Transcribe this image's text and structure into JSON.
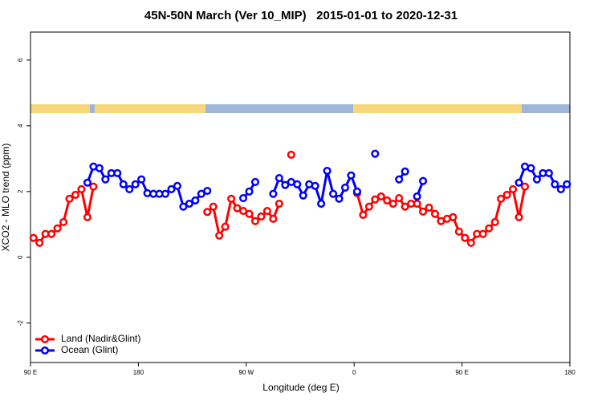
{
  "chart_data": {
    "type": "line",
    "title": "45N-50N March (Ver 10_MIP)   2015-01-01 to 2020-12-31",
    "x_label": "Longitude (deg E)",
    "y_label": "XCO2 - MLO trend (ppm)",
    "x": [
      92.5,
      97.5,
      102.5,
      107.5,
      112.5,
      117.5,
      122.5,
      127.5,
      132.5,
      137.5,
      142.5,
      147.5,
      152.5,
      157.5,
      162.5,
      167.5,
      172.5,
      177.5,
      182.5,
      187.5,
      192.5,
      197.5,
      202.5,
      207.5,
      212.5,
      217.5,
      222.5,
      227.5,
      232.5,
      237.5,
      242.5,
      247.5,
      252.5,
      257.5,
      262.5,
      267.5,
      272.5,
      277.5,
      282.5,
      287.5,
      292.5,
      297.5,
      302.5,
      307.5,
      312.5,
      317.5,
      322.5,
      327.5,
      332.5,
      337.5,
      342.5,
      347.5,
      352.5,
      357.5,
      362.5,
      367.5,
      372.5,
      377.5,
      382.5,
      387.5,
      392.5,
      397.5,
      402.5,
      407.5,
      412.5,
      417.5,
      422.5,
      427.5,
      432.5,
      437.5,
      442.5,
      447.5,
      452.5,
      457.5,
      462.5,
      467.5,
      472.5,
      477.5,
      482.5,
      487.5,
      492.5,
      497.5,
      502.5,
      507.5,
      512.5,
      517.5,
      522.5,
      527.5,
      532.5,
      537.5
    ],
    "series": [
      {
        "name": "Land (Nadir&Glint)",
        "color": "#ff0000",
        "values": [
          0.59,
          0.44,
          0.71,
          0.71,
          0.88,
          1.07,
          1.78,
          1.9,
          2.07,
          1.22,
          2.15,
          null,
          null,
          null,
          null,
          null,
          null,
          null,
          null,
          null,
          null,
          null,
          null,
          null,
          null,
          null,
          null,
          null,
          null,
          1.38,
          1.54,
          0.66,
          0.93,
          1.78,
          1.49,
          1.41,
          1.32,
          1.1,
          1.24,
          1.41,
          1.17,
          1.63,
          null,
          3.12,
          null,
          null,
          null,
          null,
          null,
          null,
          null,
          null,
          null,
          null,
          1.95,
          1.29,
          1.54,
          1.76,
          1.85,
          1.73,
          1.63,
          1.8,
          1.54,
          1.63,
          1.63,
          1.39,
          1.51,
          1.32,
          1.1,
          1.17,
          1.22,
          0.78,
          0.59,
          0.44,
          0.71,
          0.71,
          0.88,
          1.07,
          1.78,
          1.9,
          2.07,
          1.22,
          2.15,
          null,
          null,
          null,
          null,
          null,
          null,
          null
        ]
      },
      {
        "name": "Ocean (Glint)",
        "color": "#0000ff",
        "values": [
          null,
          null,
          null,
          null,
          null,
          null,
          null,
          null,
          null,
          2.27,
          2.76,
          2.71,
          2.37,
          2.56,
          2.56,
          2.22,
          2.07,
          2.22,
          2.37,
          1.95,
          1.93,
          1.93,
          1.93,
          2.07,
          2.17,
          1.54,
          1.63,
          1.73,
          1.93,
          2.02,
          null,
          null,
          null,
          null,
          null,
          1.8,
          2.0,
          2.29,
          null,
          null,
          1.93,
          2.41,
          2.2,
          2.29,
          2.22,
          1.88,
          2.22,
          2.17,
          1.63,
          2.63,
          1.93,
          1.78,
          2.12,
          2.49,
          2.0,
          null,
          null,
          3.15,
          null,
          null,
          null,
          2.37,
          2.61,
          null,
          1.85,
          2.32,
          null,
          null,
          null,
          null,
          null,
          null,
          null,
          null,
          null,
          null,
          null,
          null,
          null,
          null,
          null,
          2.27,
          2.76,
          2.71,
          2.37,
          2.56,
          2.56,
          2.22,
          2.07,
          2.22
        ]
      }
    ],
    "xlim": [
      90,
      540
    ],
    "xticks": [
      {
        "value": 90,
        "label": "90 E"
      },
      180,
      {
        "value": 270,
        "label": "90 W"
      },
      {
        "value": 360,
        "label": "0"
      },
      {
        "value": 450,
        "label": "90 E"
      },
      {
        "value": 540,
        "label": "180"
      }
    ],
    "ylim": [
      -3.2,
      6.85
    ],
    "yticks": [
      -2,
      0,
      2,
      4,
      6
    ],
    "legend": "bottomleft"
  }
}
